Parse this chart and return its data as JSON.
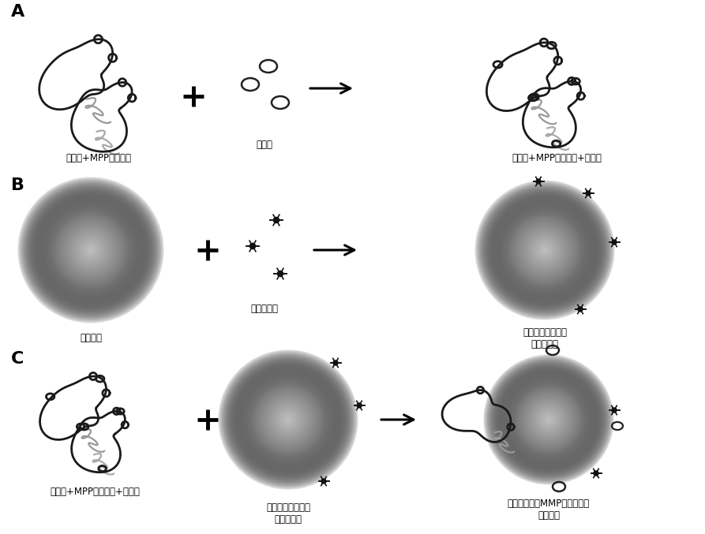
{
  "panel_labels": [
    "A",
    "B",
    "C"
  ],
  "labels_A": [
    "穿膜衔+MPP酶切位点",
    "生物素",
    "穿膜衔+MPP酵切位点+生物素"
  ],
  "labels_B": [
    "纳米颗粒",
    "链霞亲和素",
    "纳米颗粒表面修饰\n链霞亲和素"
  ],
  "labels_C": [
    "穿膜衔+MPP酵切位点+生物素",
    "纳米颗粒表面修饰\n链霞亲和素",
    "偶联穿膜衔和MMP酵切位点的\n纳米颗粒"
  ],
  "bg_color": "#ffffff"
}
